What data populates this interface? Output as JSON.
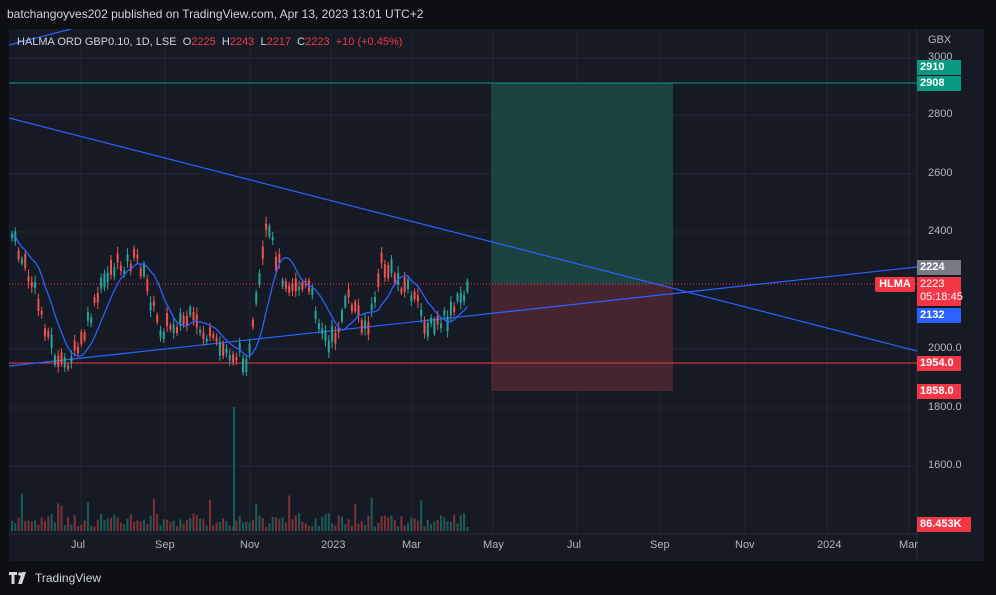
{
  "header": {
    "publisher_line": "batchangoyves202 published on TradingView.com, Apr 13, 2023 13:01 UTC+2"
  },
  "legend": {
    "symbol": "HALMA ORD GBP0.10, 1D, LSE",
    "o_label": "O",
    "o_value": "2225",
    "h_label": "H",
    "h_value": "2243",
    "l_label": "L",
    "l_value": "2217",
    "c_label": "C",
    "c_value": "2223",
    "change": "+10 (+0.45%)"
  },
  "axis": {
    "currency": "GBX",
    "y_ticks": [
      "3000",
      "2800",
      "2600",
      "2400",
      "2000.0",
      "1800.0",
      "1600.0"
    ],
    "x_ticks": [
      "Jul",
      "Sep",
      "Nov",
      "2023",
      "Mar",
      "May",
      "Jul",
      "Sep",
      "Nov",
      "2024",
      "Mar"
    ]
  },
  "price_labels": {
    "target_top": "2910",
    "target": "2908",
    "upper_line": "2224",
    "last": "2223",
    "countdown": "05:18:45",
    "ma": "2132",
    "support": "1954.0",
    "stop": "1858.0",
    "volume": "86.453K"
  },
  "ticker_tag": "HLMA",
  "footer": {
    "brand": "TradingView"
  },
  "colors": {
    "background": "#161a25",
    "up": "#26a69a",
    "down": "#ef5350",
    "line_blue": "#2962ff",
    "profit_zone": "#1b4d45",
    "loss_zone": "#5a2a35",
    "support_red": "#f23645",
    "target_teal": "#089981"
  }
}
